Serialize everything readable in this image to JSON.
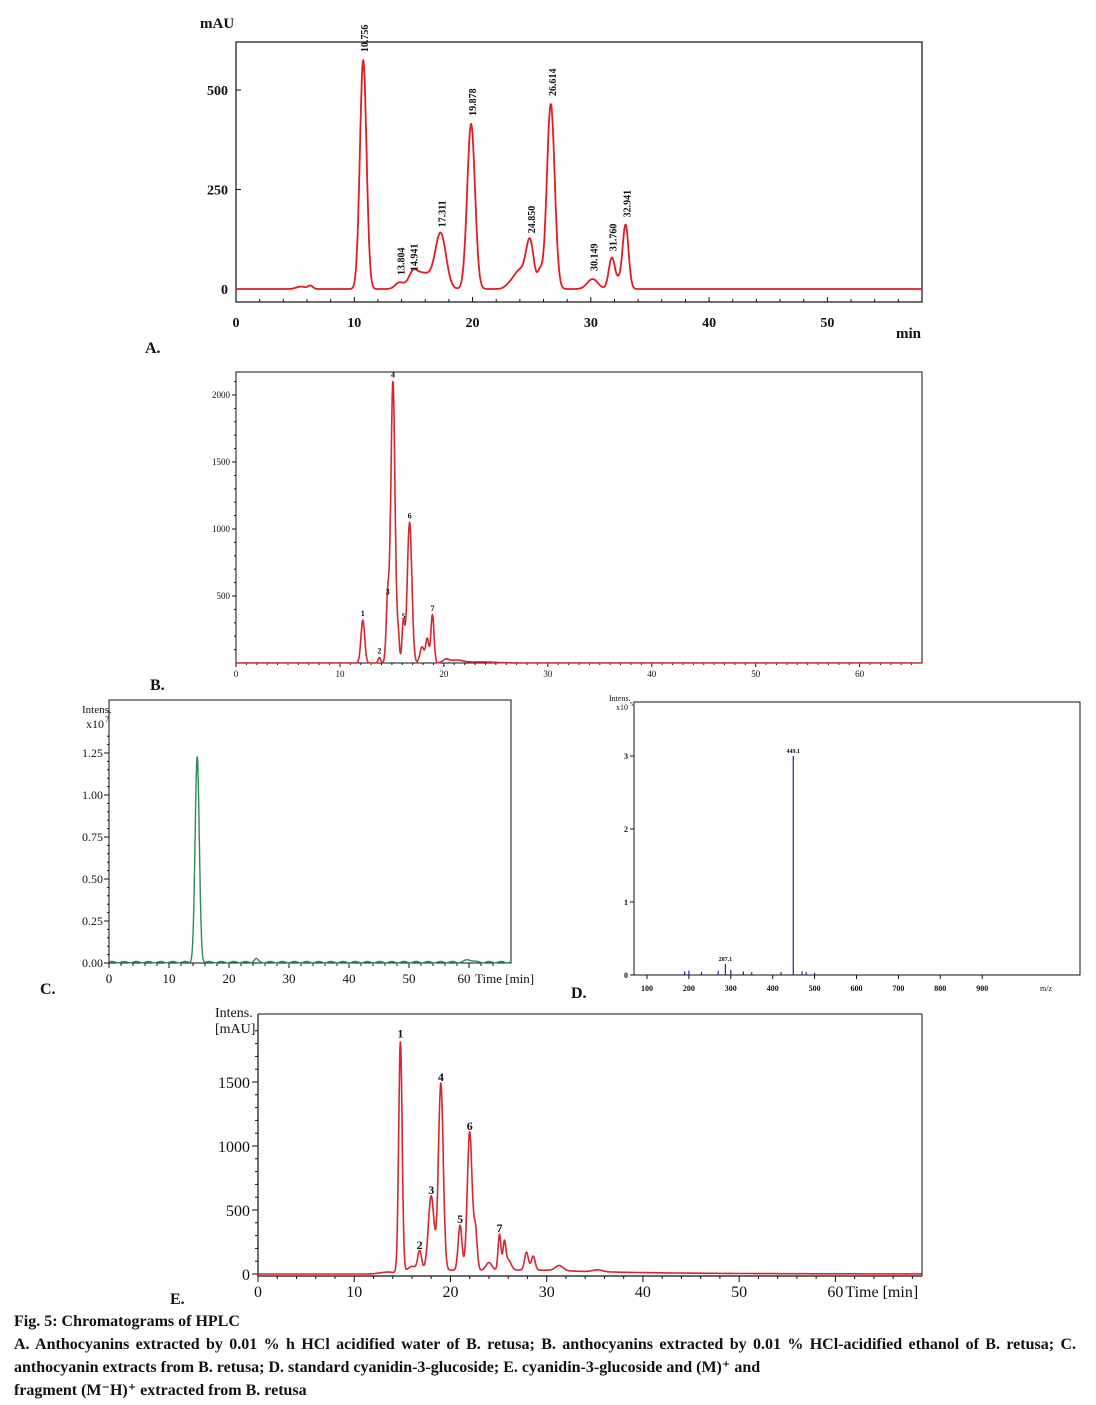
{
  "chart_data": [
    {
      "panel": "A.",
      "type": "line",
      "ylabel": "mAU",
      "xlabel": "min",
      "xlim": [
        0,
        58
      ],
      "ylim": [
        -30,
        620
      ],
      "xticks": [
        "0",
        "10",
        "20",
        "30",
        "40",
        "50"
      ],
      "yticks": [
        "0",
        "250",
        "500"
      ],
      "color": "#e31b23",
      "peaks": [
        {
          "x": 10.756,
          "y": 575,
          "label": "10.756"
        },
        {
          "x": 13.804,
          "y": 15,
          "label": "13.804"
        },
        {
          "x": 14.941,
          "y": 25,
          "label": "14.941"
        },
        {
          "x": 17.311,
          "y": 135,
          "label": "17.311"
        },
        {
          "x": 19.878,
          "y": 415,
          "label": "19.878"
        },
        {
          "x": 24.85,
          "y": 120,
          "label": "24.850"
        },
        {
          "x": 26.614,
          "y": 465,
          "label": "26.614"
        },
        {
          "x": 30.149,
          "y": 25,
          "label": "30.149"
        },
        {
          "x": 31.76,
          "y": 75,
          "label": "31.760"
        },
        {
          "x": 32.941,
          "y": 160,
          "label": "32.941"
        }
      ]
    },
    {
      "panel": "B.",
      "type": "line",
      "xlim": [
        0,
        66
      ],
      "ylim": [
        0,
        2150
      ],
      "xticks": [
        "0",
        "10",
        "20",
        "30",
        "40",
        "50",
        "60"
      ],
      "yticks": [
        "500",
        "1000",
        "1500",
        "2000"
      ],
      "color": "#d9262c",
      "peaks": [
        {
          "x": 12.2,
          "y": 320,
          "label": "1"
        },
        {
          "x": 13.8,
          "y": 40,
          "label": "2"
        },
        {
          "x": 14.6,
          "y": 480,
          "label": "3"
        },
        {
          "x": 15.1,
          "y": 2100,
          "label": "4"
        },
        {
          "x": 16.1,
          "y": 300,
          "label": "5"
        },
        {
          "x": 16.7,
          "y": 1050,
          "label": "6"
        },
        {
          "x": 18.9,
          "y": 360,
          "label": "7"
        }
      ]
    },
    {
      "panel": "C.",
      "type": "line",
      "ylabel": "Intens. x10⁷",
      "xlabel": "Time [min]",
      "xlim": [
        0,
        67
      ],
      "ylim": [
        0,
        1.45
      ],
      "xticks": [
        "0",
        "10",
        "20",
        "30",
        "40",
        "50",
        "60"
      ],
      "yticks": [
        "0.00",
        "0.25",
        "0.50",
        "0.75",
        "1.00",
        "1.25"
      ],
      "color": "#2e8b57",
      "peaks": [
        {
          "x": 14.7,
          "y": 1.22
        }
      ]
    },
    {
      "panel": "D.",
      "type": "bar",
      "ylabel": "Intens. x10⁵",
      "xlabel": "m/z",
      "xlim": [
        50,
        1100
      ],
      "ylim": [
        0,
        3.1
      ],
      "xticks": [
        "100",
        "200",
        "300",
        "400",
        "500",
        "600",
        "700",
        "800",
        "900"
      ],
      "yticks": [
        "0",
        "1",
        "2",
        "3"
      ],
      "color": "#1f2a80",
      "peaks": [
        {
          "x": 190,
          "y": 0.05
        },
        {
          "x": 200,
          "y": 0.06
        },
        {
          "x": 230,
          "y": 0.04
        },
        {
          "x": 270,
          "y": 0.06
        },
        {
          "x": 287.1,
          "y": 0.15,
          "label": "287.1"
        },
        {
          "x": 300,
          "y": 0.07
        },
        {
          "x": 330,
          "y": 0.05
        },
        {
          "x": 350,
          "y": 0.04
        },
        {
          "x": 420,
          "y": 0.04
        },
        {
          "x": 449.1,
          "y": 3.0,
          "label": "449.1"
        },
        {
          "x": 470,
          "y": 0.05
        },
        {
          "x": 480,
          "y": 0.04
        },
        {
          "x": 500,
          "y": 0.03
        }
      ]
    },
    {
      "panel": "E.",
      "type": "line",
      "ylabel": "Intens. [mAU]",
      "xlabel": "Time [min]",
      "xlim": [
        0,
        69
      ],
      "ylim": [
        0,
        2020
      ],
      "xticks": [
        "0",
        "10",
        "20",
        "30",
        "40",
        "50",
        "60"
      ],
      "yticks": [
        "0",
        "500",
        "1000",
        "1500"
      ],
      "color": "#d9262c",
      "peaks": [
        {
          "x": 14.8,
          "y": 1800,
          "label": "1"
        },
        {
          "x": 16.8,
          "y": 150,
          "label": "2"
        },
        {
          "x": 18.0,
          "y": 580,
          "label": "3"
        },
        {
          "x": 19.0,
          "y": 1460,
          "label": "4"
        },
        {
          "x": 21.0,
          "y": 350,
          "label": "5"
        },
        {
          "x": 22.0,
          "y": 1080,
          "label": "6"
        },
        {
          "x": 25.1,
          "y": 280,
          "label": "7"
        }
      ]
    }
  ],
  "caption": {
    "title": "Fig. 5: Chromatograms of HPLC",
    "text": "A. Anthocyanins extracted by 0.01 % h HCl acidified water of B. retusa; B. anthocyanins extracted by 0.01 % HCl-acidified ethanol of B. retusa; C. anthocyanin extracts from B. retusa; D. standard cyanidin-3-glucoside; E. cyanidin-3-glucoside and (M)⁺ and",
    "last_line": "fragment (M⁻H)⁺ extracted from B. retusa"
  }
}
